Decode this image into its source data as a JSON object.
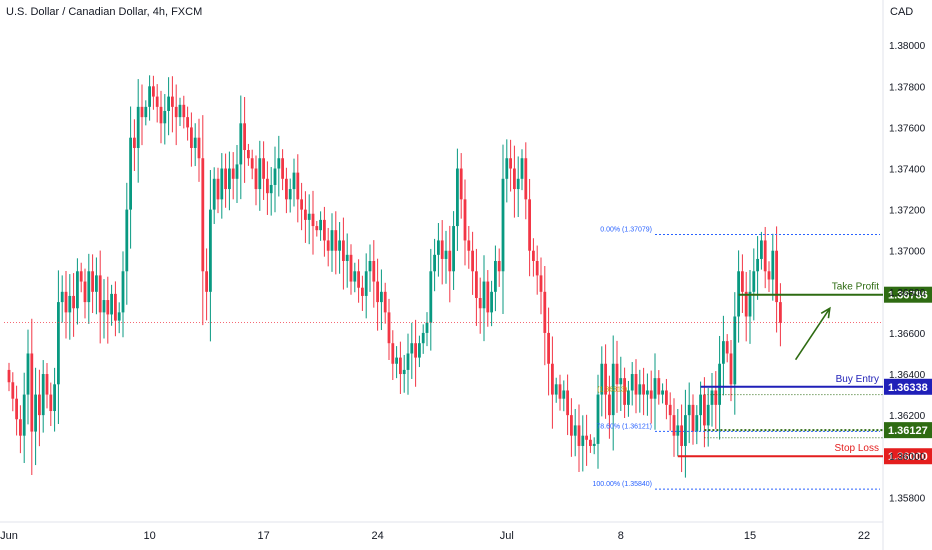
{
  "header": {
    "title": "U.S. Dollar / Canadian Dollar, 4h, FXCM",
    "currency": "CAD"
  },
  "colors": {
    "up": "#089981",
    "down": "#f23645",
    "green": "#2e6b12",
    "blue": "#1f1fb8",
    "red": "#e41e1e",
    "fib": "#2962ff",
    "axis": "#131722",
    "grid_rule": "#e0e3eb"
  },
  "chart_data": {
    "type": "candlestick",
    "title": "U.S. Dollar / Canadian Dollar, 4h, FXCM",
    "currency_label": "CAD",
    "ylim": [
      1.3568,
      1.3822
    ],
    "y_ticks": [
      1.358,
      1.36,
      1.362,
      1.364,
      1.366,
      1.368,
      1.37,
      1.372,
      1.374,
      1.376,
      1.378,
      1.38
    ],
    "y_tick_labels": [
      "1.35800",
      "1.36000",
      "1.36200",
      "1.36400",
      "1.36600",
      "1.36800",
      "1.37000",
      "1.37200",
      "1.37400",
      "1.37600",
      "1.37800",
      "1.38000"
    ],
    "x_ticks": [
      {
        "label": "Jun",
        "bar": 0
      },
      {
        "label": "10",
        "bar": 37
      },
      {
        "label": "17",
        "bar": 67
      },
      {
        "label": "24",
        "bar": 97
      },
      {
        "label": "Jul",
        "bar": 131
      },
      {
        "label": "8",
        "bar": 161
      },
      {
        "label": "15",
        "bar": 195
      },
      {
        "label": "22",
        "bar": 225
      }
    ],
    "closes": [
      1.3636,
      1.3628,
      1.3618,
      1.361,
      1.363,
      1.365,
      1.3612,
      1.363,
      1.362,
      1.364,
      1.363,
      1.3622,
      1.3635,
      1.3675,
      1.368,
      1.367,
      1.3678,
      1.3672,
      1.369,
      1.3685,
      1.3675,
      1.369,
      1.368,
      1.3688,
      1.367,
      1.3676,
      1.3669,
      1.3679,
      1.3666,
      1.367,
      1.369,
      1.372,
      1.3755,
      1.375,
      1.377,
      1.3765,
      1.377,
      1.378,
      1.3775,
      1.377,
      1.3762,
      1.3768,
      1.3775,
      1.377,
      1.3765,
      1.3771,
      1.3765,
      1.376,
      1.375,
      1.3755,
      1.3745,
      1.369,
      1.368,
      1.372,
      1.3735,
      1.3725,
      1.374,
      1.373,
      1.374,
      1.3735,
      1.3742,
      1.3762,
      1.3749,
      1.3745,
      1.374,
      1.373,
      1.3745,
      1.3735,
      1.3728,
      1.3732,
      1.374,
      1.3745,
      1.3735,
      1.3725,
      1.373,
      1.3738,
      1.3725,
      1.372,
      1.3715,
      1.3718,
      1.3712,
      1.371,
      1.3715,
      1.3705,
      1.37,
      1.371,
      1.37,
      1.3705,
      1.3695,
      1.3698,
      1.3685,
      1.369,
      1.3682,
      1.3678,
      1.369,
      1.3695,
      1.3685,
      1.3675,
      1.368,
      1.367,
      1.3655,
      1.3645,
      1.3648,
      1.364,
      1.3642,
      1.365,
      1.3655,
      1.3648,
      1.3655,
      1.366,
      1.3665,
      1.369,
      1.3698,
      1.3705,
      1.3696,
      1.37,
      1.369,
      1.3712,
      1.374,
      1.3725,
      1.3705,
      1.37,
      1.369,
      1.3677,
      1.3672,
      1.3685,
      1.367,
      1.368,
      1.3695,
      1.369,
      1.3735,
      1.3745,
      1.374,
      1.373,
      1.3735,
      1.3745,
      1.3725,
      1.37,
      1.3695,
      1.3688,
      1.368,
      1.366,
      1.3645,
      1.363,
      1.3635,
      1.3628,
      1.3632,
      1.362,
      1.361,
      1.3615,
      1.3605,
      1.361,
      1.3608,
      1.3605,
      1.3606,
      1.363,
      1.3645,
      1.363,
      1.362,
      1.3645,
      1.3635,
      1.3638,
      1.3625,
      1.3632,
      1.364,
      1.363,
      1.3635,
      1.363,
      1.3632,
      1.3628,
      1.3638,
      1.363,
      1.3632,
      1.3625,
      1.362,
      1.361,
      1.3615,
      1.3605,
      1.362,
      1.3625,
      1.3612,
      1.362,
      1.363,
      1.3615,
      1.3625,
      1.3632,
      1.3625,
      1.3645,
      1.3656,
      1.365,
      1.3635,
      1.3668,
      1.369,
      1.368,
      1.3668,
      1.368,
      1.369,
      1.3696,
      1.3705,
      1.369,
      1.3686,
      1.37,
      1.3675,
      1.3665
    ],
    "last_price_line": 1.3665,
    "fibonacci": [
      {
        "label": "0.00% (1.37079)",
        "price": 1.37079
      },
      {
        "label": "78.60% (1.36121)",
        "price": 1.36121
      },
      {
        "label": "100.00% (1.35840)",
        "price": 1.3584
      }
    ],
    "fib_partial_label": "(1.36313)",
    "levels": [
      {
        "name": "Take Profit",
        "price": 1.36786,
        "value_label": "1.36786",
        "color": "#2e6b12"
      },
      {
        "name": "Buy Entry",
        "price": 1.36338,
        "value_label": "1.36338",
        "color": "#1f1fb8"
      },
      {
        "name": "",
        "price": 1.36127,
        "value_label": "1.36127",
        "color": "#2e6b12"
      },
      {
        "name": "Stop Loss",
        "price": 1.36,
        "value_label": "1.36000",
        "color": "#e41e1e"
      }
    ],
    "arrow": {
      "from": [
        207,
        1.3647
      ],
      "to": [
        216,
        1.3672
      ]
    }
  }
}
